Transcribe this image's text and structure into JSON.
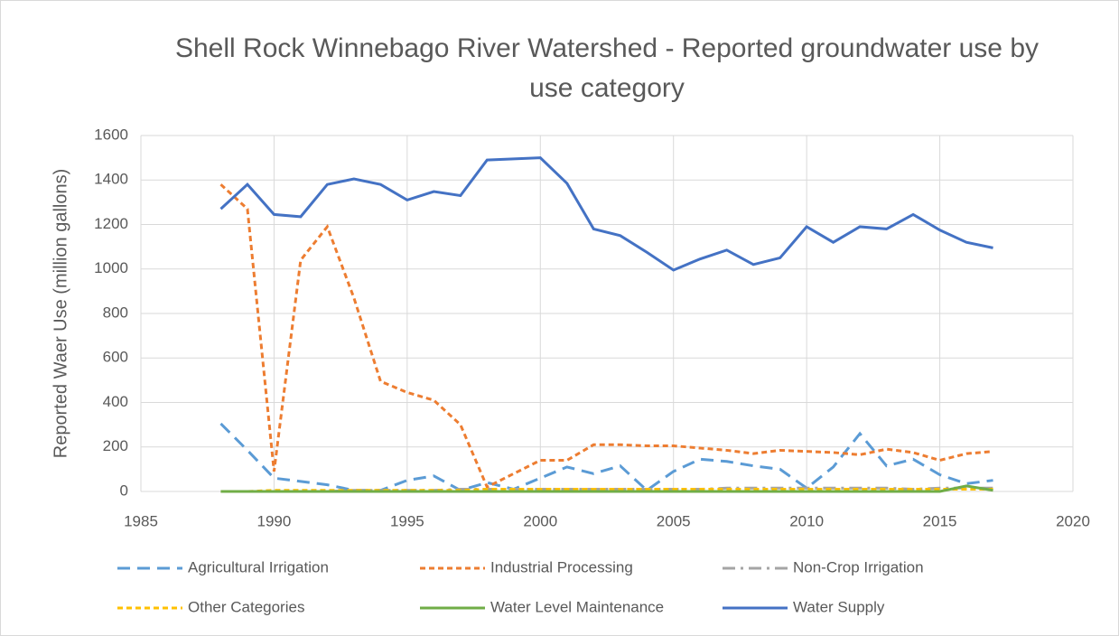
{
  "chart_data": {
    "type": "line",
    "title": "Shell Rock Winnebago River Watershed - Reported groundwater use by use category",
    "y_label": "Reported Waer Use (million gallons)",
    "x": [
      1988,
      1989,
      1990,
      1991,
      1992,
      1993,
      1994,
      1995,
      1996,
      1997,
      1998,
      1999,
      2000,
      2001,
      2002,
      2003,
      2004,
      2005,
      2006,
      2007,
      2008,
      2009,
      2010,
      2011,
      2012,
      2013,
      2014,
      2015,
      2016,
      2017
    ],
    "xlim": [
      1985,
      2020
    ],
    "xticks": [
      1985,
      1990,
      1995,
      2000,
      2005,
      2010,
      2015,
      2020
    ],
    "ylim": [
      0,
      1600
    ],
    "yticks": [
      0,
      200,
      400,
      600,
      800,
      1000,
      1200,
      1400,
      1600
    ],
    "grid": true,
    "legend": "bottom",
    "series": [
      {
        "name": "Agricultural Irrigation",
        "color": "#5b9bd5",
        "dash": "14,8",
        "values": [
          305,
          185,
          60,
          45,
          30,
          5,
          5,
          50,
          70,
          5,
          40,
          10,
          60,
          110,
          80,
          115,
          5,
          90,
          145,
          135,
          115,
          100,
          15,
          110,
          260,
          115,
          145,
          75,
          35,
          50
        ]
      },
      {
        "name": "Industrial Processing",
        "color": "#ed7d31",
        "dash": "6,4",
        "values": [
          1380,
          1270,
          90,
          1040,
          1190,
          870,
          495,
          445,
          410,
          300,
          20,
          80,
          140,
          140,
          210,
          210,
          205,
          205,
          195,
          185,
          170,
          185,
          180,
          175,
          165,
          190,
          175,
          140,
          170,
          180
        ]
      },
      {
        "name": "Non-Crop Irrigation",
        "color": "#a5a5a5",
        "dash": "14,6,3,6",
        "values": [
          0,
          0,
          0,
          0,
          0,
          5,
          5,
          5,
          5,
          10,
          10,
          10,
          10,
          10,
          10,
          10,
          10,
          10,
          10,
          15,
          15,
          15,
          15,
          15,
          15,
          15,
          10,
          15,
          15,
          15
        ]
      },
      {
        "name": "Other Categories",
        "color": "#ffc000",
        "dash": "6,4",
        "values": [
          0,
          0,
          5,
          5,
          5,
          5,
          5,
          5,
          5,
          5,
          10,
          10,
          10,
          10,
          10,
          10,
          10,
          10,
          10,
          10,
          10,
          10,
          10,
          10,
          10,
          10,
          10,
          10,
          10,
          10
        ]
      },
      {
        "name": "Water Level Maintenance",
        "color": "#70ad47",
        "dash": "",
        "values": [
          0,
          0,
          0,
          0,
          0,
          0,
          0,
          0,
          0,
          0,
          0,
          0,
          0,
          0,
          0,
          0,
          0,
          0,
          0,
          0,
          0,
          0,
          0,
          0,
          0,
          0,
          0,
          0,
          25,
          5
        ]
      },
      {
        "name": "Water Supply",
        "color": "#4472c4",
        "dash": "",
        "values": [
          1270,
          1380,
          1245,
          1235,
          1380,
          1405,
          1380,
          1310,
          1348,
          1330,
          1490,
          1495,
          1500,
          1385,
          1180,
          1150,
          1075,
          995,
          1045,
          1085,
          1020,
          1050,
          1190,
          1120,
          1190,
          1180,
          1245,
          1175,
          1120,
          1095
        ]
      }
    ]
  }
}
